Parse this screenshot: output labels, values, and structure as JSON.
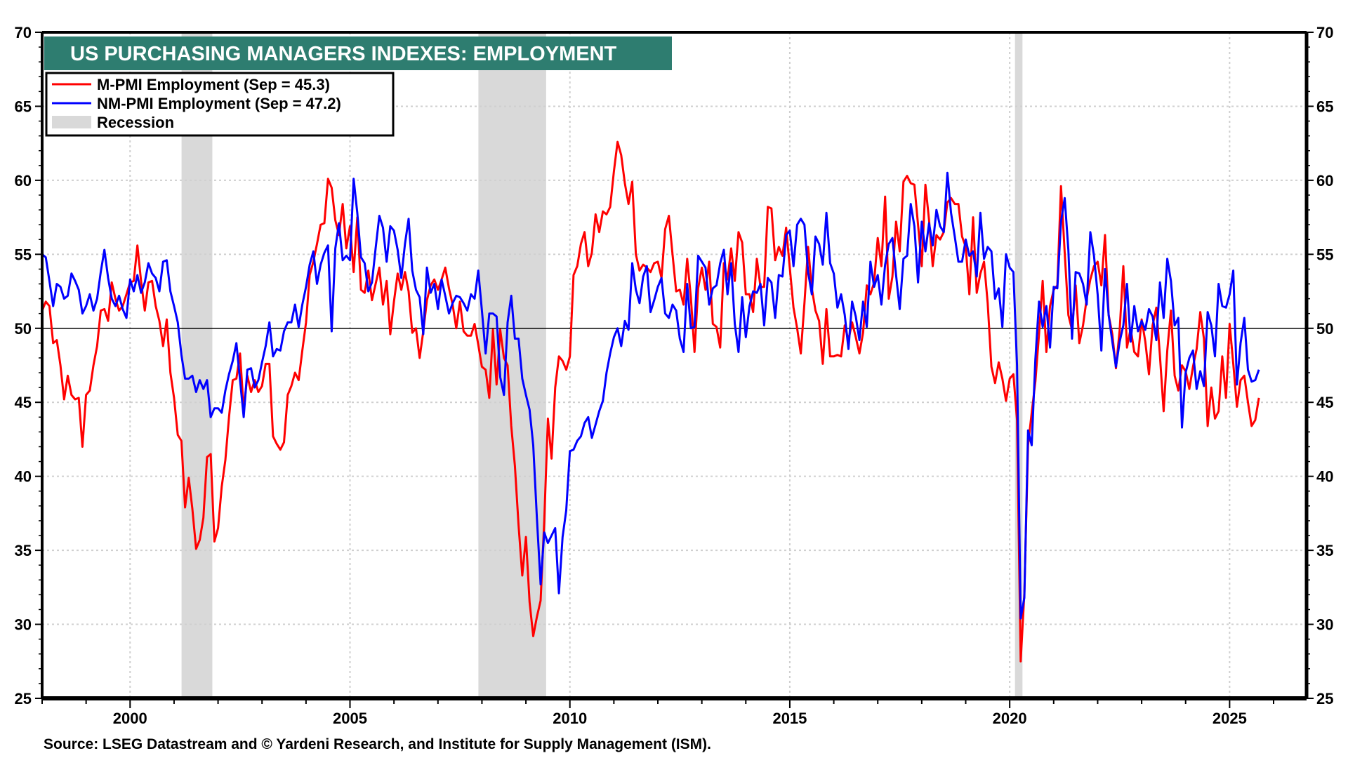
{
  "chart_data": {
    "type": "line",
    "title": "US PURCHASING MANAGERS INDEXES: EMPLOYMENT",
    "source": "Source: LSEG Datastream and © Yardeni Research, and Institute for Supply Management (ISM).",
    "xlabel": "",
    "ylabel": "",
    "x_frequency": "monthly",
    "x_start": "1998-01",
    "x_end": "2025-09",
    "xlim": [
      1998.0,
      2026.75
    ],
    "ylim": [
      25,
      70
    ],
    "x_ticks": [
      "2000",
      "2005",
      "2010",
      "2015",
      "2020",
      "2025"
    ],
    "y_ticks": [
      "25",
      "30",
      "35",
      "40",
      "45",
      "50",
      "55",
      "60",
      "65",
      "70"
    ],
    "reference_line": 50,
    "grid": true,
    "legend_position": "top-left",
    "legend": [
      {
        "label": "M-PMI Employment (Sep = 45.3)",
        "kind": "line",
        "color": "#ff0000"
      },
      {
        "label": "NM-PMI Employment (Sep = 47.2)",
        "kind": "line",
        "color": "#0000ff"
      },
      {
        "label": "Recession",
        "kind": "area",
        "color": "#d9d9d9"
      }
    ],
    "recessions": [
      {
        "start": 2001.17,
        "end": 2001.87
      },
      {
        "start": 2007.92,
        "end": 2009.46
      },
      {
        "start": 2020.12,
        "end": 2020.29
      }
    ],
    "series": [
      {
        "name": "M-PMI Employment",
        "color": "#ff0000",
        "latest": "Sep = 45.3",
        "values": [
          51.2,
          51.8,
          51.5,
          49.0,
          49.2,
          47.5,
          45.2,
          46.8,
          45.5,
          45.2,
          45.3,
          42.0,
          45.5,
          45.8,
          47.5,
          48.8,
          51.2,
          51.3,
          50.5,
          53.1,
          52.0,
          51.2,
          51.5,
          52.3,
          53.1,
          53.2,
          55.6,
          53.2,
          51.2,
          53.1,
          53.2,
          51.5,
          50.5,
          48.8,
          50.6,
          47.0,
          45.3,
          42.8,
          42.4,
          37.9,
          39.9,
          37.8,
          35.1,
          35.7,
          37.2,
          41.3,
          41.5,
          35.6,
          36.5,
          39.3,
          41.1,
          44.0,
          46.5,
          46.6,
          48.3,
          44.5,
          46.8,
          45.7,
          46.5,
          45.7,
          46.1,
          47.6,
          47.6,
          42.7,
          42.2,
          41.8,
          42.3,
          45.5,
          46.1,
          47.0,
          46.5,
          48.5,
          50.4,
          53.6,
          54.5,
          55.7,
          57.0,
          57.1,
          60.1,
          59.5,
          57.3,
          56.3,
          58.4,
          55.4,
          56.9,
          53.8,
          57.5,
          52.6,
          52.4,
          53.9,
          51.9,
          53.0,
          54.1,
          51.6,
          53.2,
          49.6,
          51.8,
          53.7,
          52.6,
          53.8,
          52.5,
          49.7,
          50.0,
          48.0,
          49.8,
          51.9,
          52.9,
          53.3,
          52.6,
          53.3,
          54.1,
          52.7,
          51.6,
          50.0,
          51.8,
          49.8,
          49.5,
          49.5,
          50.3,
          48.9,
          47.4,
          47.2,
          45.3,
          49.9,
          46.2,
          49.9,
          48.0,
          47.5,
          43.4,
          40.7,
          36.7,
          33.3,
          35.9,
          31.5,
          29.2,
          30.5,
          31.6,
          37.0,
          43.9,
          41.2,
          46.0,
          48.1,
          47.8,
          47.2,
          48.1,
          53.6,
          54.2,
          55.7,
          56.5,
          54.2,
          55.1,
          57.7,
          56.5,
          57.9,
          57.7,
          58.2,
          60.6,
          62.6,
          61.7,
          59.8,
          58.4,
          59.9,
          55.0,
          53.9,
          54.3,
          54.1,
          53.8,
          54.4,
          54.5,
          53.4,
          56.7,
          57.6,
          55.0,
          52.5,
          52.6,
          51.6,
          54.7,
          52.1,
          48.4,
          52.7,
          54.1,
          52.6,
          54.5,
          50.3,
          50.1,
          48.7,
          54.4,
          53.3,
          55.4,
          53.2,
          56.5,
          55.8,
          52.3,
          52.3,
          51.1,
          54.7,
          52.8,
          52.8,
          58.2,
          58.1,
          54.6,
          55.5,
          54.9,
          56.8,
          54.1,
          51.4,
          50.0,
          48.3,
          51.7,
          55.5,
          52.7,
          51.2,
          50.5,
          47.6,
          51.3,
          48.1,
          48.1,
          48.2,
          48.1,
          50.2,
          49.2,
          50.4,
          49.4,
          48.3,
          49.7,
          52.9,
          52.3,
          53.1,
          56.1,
          54.2,
          58.9,
          52.0,
          53.5,
          57.2,
          55.2,
          59.9,
          60.3,
          59.8,
          59.7,
          57.0,
          54.2,
          59.7,
          57.3,
          54.2,
          56.3,
          56.0,
          56.5,
          58.5,
          58.8,
          58.4,
          58.4,
          56.2,
          55.5,
          52.3,
          57.5,
          52.4,
          53.7,
          54.5,
          51.7,
          47.4,
          46.3,
          47.7,
          46.6,
          45.1,
          46.6,
          46.9,
          43.8,
          27.5,
          32.1,
          42.1,
          44.3,
          46.4,
          49.6,
          53.2,
          48.4,
          51.5,
          52.6,
          52.9,
          59.6,
          55.1,
          50.9,
          49.9,
          52.9,
          49.0,
          50.2,
          52.0,
          53.3,
          54.2,
          54.5,
          52.9,
          56.3,
          50.9,
          49.6,
          47.3,
          49.9,
          54.2,
          48.7,
          50.0,
          48.4,
          48.1,
          50.6,
          49.1,
          46.9,
          50.2,
          51.4,
          48.1,
          44.4,
          48.5,
          51.2,
          46.8,
          45.8,
          47.5,
          47.1,
          45.9,
          47.4,
          48.6,
          51.1,
          49.3,
          43.4,
          46.0,
          43.9,
          44.4,
          48.1,
          45.3,
          50.3,
          47.6,
          44.7,
          46.5,
          46.8,
          45.0,
          43.4,
          43.8,
          45.3
        ]
      },
      {
        "name": "NM-PMI Employment",
        "color": "#0000ff",
        "latest": "Sep = 47.2",
        "values": [
          55.0,
          54.8,
          53.2,
          51.5,
          53.0,
          52.8,
          52.0,
          52.2,
          53.7,
          53.2,
          52.6,
          51.0,
          51.5,
          52.3,
          51.2,
          52.0,
          53.8,
          55.3,
          53.4,
          52.0,
          51.5,
          52.2,
          51.3,
          50.7,
          53.3,
          52.5,
          53.6,
          52.4,
          53.1,
          54.4,
          53.7,
          53.4,
          52.5,
          54.5,
          54.6,
          52.5,
          51.5,
          50.4,
          48.2,
          46.6,
          46.6,
          46.8,
          45.7,
          46.5,
          45.9,
          46.5,
          44.0,
          44.6,
          44.6,
          44.3,
          45.8,
          46.9,
          47.8,
          49.0,
          46.5,
          44.0,
          47.2,
          47.3,
          46.0,
          46.5,
          47.7,
          48.8,
          50.4,
          48.1,
          48.6,
          48.5,
          49.8,
          50.4,
          50.4,
          51.6,
          50.1,
          51.6,
          52.8,
          54.3,
          55.2,
          53.0,
          54.3,
          55.1,
          55.6,
          49.8,
          55.4,
          57.1,
          54.6,
          54.9,
          54.6,
          60.1,
          57.8,
          54.8,
          54.4,
          52.5,
          53.1,
          55.4,
          57.6,
          56.8,
          54.5,
          56.9,
          56.6,
          55.3,
          53.4,
          55.7,
          57.4,
          53.9,
          52.6,
          52.1,
          49.6,
          54.1,
          52.4,
          53.0,
          51.3,
          53.3,
          52.2,
          51.0,
          51.7,
          52.2,
          52.1,
          51.7,
          51.2,
          52.3,
          52.0,
          53.9,
          51.2,
          48.3,
          51.0,
          51.0,
          50.8,
          46.7,
          45.5,
          50.4,
          52.2,
          49.3,
          49.3,
          46.6,
          45.5,
          44.5,
          42.1,
          37.2,
          32.7,
          36.2,
          35.5,
          36.0,
          36.5,
          32.1,
          35.9,
          37.7,
          41.7,
          41.8,
          42.4,
          42.7,
          43.6,
          44.0,
          42.6,
          43.5,
          44.4,
          45.1,
          47.0,
          48.3,
          49.4,
          50.0,
          48.8,
          50.5,
          49.9,
          54.4,
          52.6,
          51.7,
          53.5,
          54.2,
          51.1,
          51.9,
          52.8,
          53.4,
          51.0,
          50.7,
          51.6,
          51.2,
          49.3,
          48.4,
          53.0,
          50.0,
          50.1,
          54.9,
          54.5,
          54.1,
          51.6,
          52.7,
          52.9,
          54.4,
          55.3,
          52.3,
          54.4,
          50.3,
          48.4,
          52.1,
          49.4,
          51.5,
          52.5,
          52.4,
          53.0,
          50.2,
          53.4,
          53.1,
          50.7,
          53.6,
          53.5,
          56.3,
          56.6,
          54.2,
          57.0,
          57.4,
          57.0,
          53.8,
          52.3,
          56.2,
          55.7,
          54.3,
          57.8,
          54.4,
          53.7,
          51.4,
          52.3,
          50.9,
          48.6,
          51.8,
          50.8,
          49.2,
          51.8,
          50.1,
          54.5,
          52.8,
          53.6,
          51.6,
          54.3,
          55.7,
          56.1,
          53.6,
          51.3,
          54.7,
          54.9,
          58.4,
          56.9,
          53.1,
          57.2,
          55.2,
          57.1,
          55.6,
          58.0,
          56.9,
          56.5,
          60.5,
          57.8,
          56.2,
          54.5,
          54.5,
          56.0,
          54.9,
          55.2,
          53.5,
          57.8,
          54.7,
          55.5,
          55.2,
          52.0,
          52.7,
          50.1,
          55.0,
          54.1,
          53.8,
          47.5,
          30.4,
          31.8,
          43.1,
          42.1,
          47.9,
          51.8,
          50.1,
          51.5,
          48.7,
          52.8,
          52.7,
          57.2,
          58.8,
          55.3,
          49.3,
          53.8,
          53.7,
          53.0,
          51.6,
          56.5,
          54.9,
          52.3,
          48.5,
          54.0,
          50.9,
          49.1,
          47.4,
          49.1,
          50.2,
          53.0,
          49.1,
          51.5,
          49.8,
          50.5,
          49.9,
          51.3,
          50.8,
          49.2,
          53.1,
          50.7,
          54.7,
          53.2,
          50.2,
          50.7,
          43.3,
          47.0,
          48.0,
          48.5,
          45.9,
          47.1,
          46.1,
          51.1,
          50.2,
          48.1,
          53.0,
          51.5,
          51.4,
          52.3,
          53.9,
          46.2,
          49.0,
          50.7,
          47.2,
          46.4,
          46.5,
          47.2
        ]
      }
    ]
  }
}
